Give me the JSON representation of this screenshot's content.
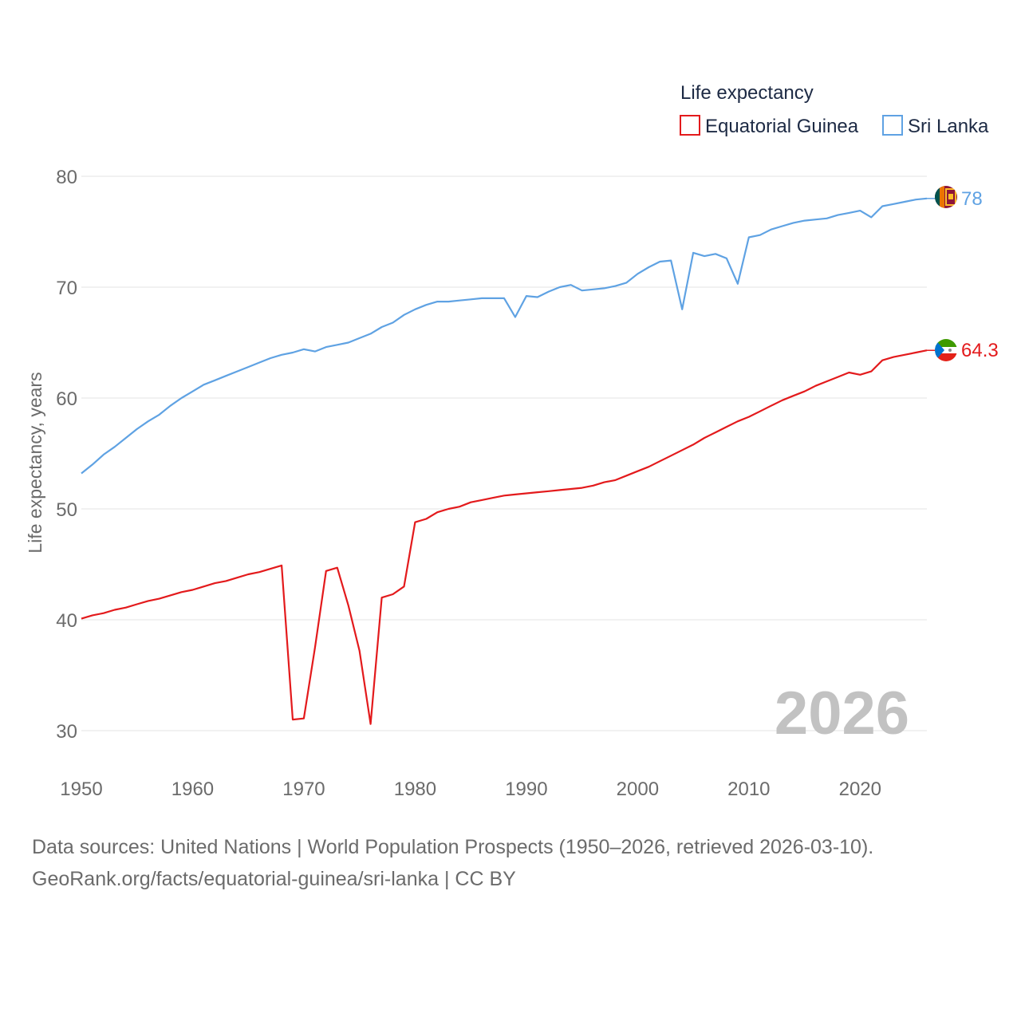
{
  "chart_data": {
    "type": "line",
    "title": "",
    "xlabel": "",
    "ylabel": "Life expectancy, years",
    "legend_title": "Life expectancy",
    "legend_position": "top-right",
    "xlim": [
      1950,
      2026
    ],
    "ylim": [
      27,
      82
    ],
    "x_ticks": [
      1950,
      1960,
      1970,
      1980,
      1990,
      2000,
      2010,
      2020
    ],
    "y_ticks": [
      30,
      40,
      50,
      60,
      70,
      80
    ],
    "grid": true,
    "watermark_year": "2026",
    "x": [
      1950,
      1951,
      1952,
      1953,
      1954,
      1955,
      1956,
      1957,
      1958,
      1959,
      1960,
      1961,
      1962,
      1963,
      1964,
      1965,
      1966,
      1967,
      1968,
      1969,
      1970,
      1971,
      1972,
      1973,
      1974,
      1975,
      1976,
      1977,
      1978,
      1979,
      1980,
      1981,
      1982,
      1983,
      1984,
      1985,
      1986,
      1987,
      1988,
      1989,
      1990,
      1991,
      1992,
      1993,
      1994,
      1995,
      1996,
      1997,
      1998,
      1999,
      2000,
      2001,
      2002,
      2003,
      2004,
      2005,
      2006,
      2007,
      2008,
      2009,
      2010,
      2011,
      2012,
      2013,
      2014,
      2015,
      2016,
      2017,
      2018,
      2019,
      2020,
      2021,
      2022,
      2023,
      2024,
      2025,
      2026
    ],
    "series": [
      {
        "name": "Equatorial Guinea",
        "color": "#e31a1c",
        "end_label": "64.3",
        "flag": "equatorial-guinea-flag-icon",
        "values": [
          40.1,
          40.4,
          40.6,
          40.9,
          41.1,
          41.4,
          41.7,
          41.9,
          42.2,
          42.5,
          42.7,
          43.0,
          43.3,
          43.5,
          43.8,
          44.1,
          44.3,
          44.6,
          44.9,
          31.0,
          31.1,
          37.5,
          44.4,
          44.7,
          41.3,
          37.2,
          30.6,
          42.0,
          42.3,
          43.0,
          48.8,
          49.1,
          49.7,
          50.0,
          50.2,
          50.6,
          50.8,
          51.0,
          51.2,
          51.3,
          51.4,
          51.5,
          51.6,
          51.7,
          51.8,
          51.9,
          52.1,
          52.4,
          52.6,
          53.0,
          53.4,
          53.8,
          54.3,
          54.8,
          55.3,
          55.8,
          56.4,
          56.9,
          57.4,
          57.9,
          58.3,
          58.8,
          59.3,
          59.8,
          60.2,
          60.6,
          61.1,
          61.5,
          61.9,
          62.3,
          62.1,
          62.4,
          63.4,
          63.7,
          63.9,
          64.1,
          64.3
        ]
      },
      {
        "name": "Sri Lanka",
        "color": "#5fa2e3",
        "end_label": "78",
        "flag": "sri-lanka-flag-icon",
        "values": [
          53.2,
          54.0,
          54.9,
          55.6,
          56.4,
          57.2,
          57.9,
          58.5,
          59.3,
          60.0,
          60.6,
          61.2,
          61.6,
          62.0,
          62.4,
          62.8,
          63.2,
          63.6,
          63.9,
          64.1,
          64.4,
          64.2,
          64.6,
          64.8,
          65.0,
          65.4,
          65.8,
          66.4,
          66.8,
          67.5,
          68.0,
          68.4,
          68.7,
          68.7,
          68.8,
          68.9,
          69.0,
          69.0,
          69.0,
          67.3,
          69.2,
          69.1,
          69.6,
          70.0,
          70.2,
          69.7,
          69.8,
          69.9,
          70.1,
          70.4,
          71.2,
          71.8,
          72.3,
          72.4,
          68.0,
          73.1,
          72.8,
          73.0,
          72.6,
          70.3,
          74.5,
          74.7,
          75.2,
          75.5,
          75.8,
          76.0,
          76.1,
          76.2,
          76.5,
          76.7,
          76.9,
          76.3,
          77.3,
          77.5,
          77.7,
          77.9,
          78.0
        ]
      }
    ]
  },
  "footer": {
    "sources": "Data sources: United Nations | World Population Prospects (1950–2026, retrieved 2026-03-10).",
    "credit": "GeoRank.org/facts/equatorial-guinea/sri-lanka | CC BY"
  }
}
